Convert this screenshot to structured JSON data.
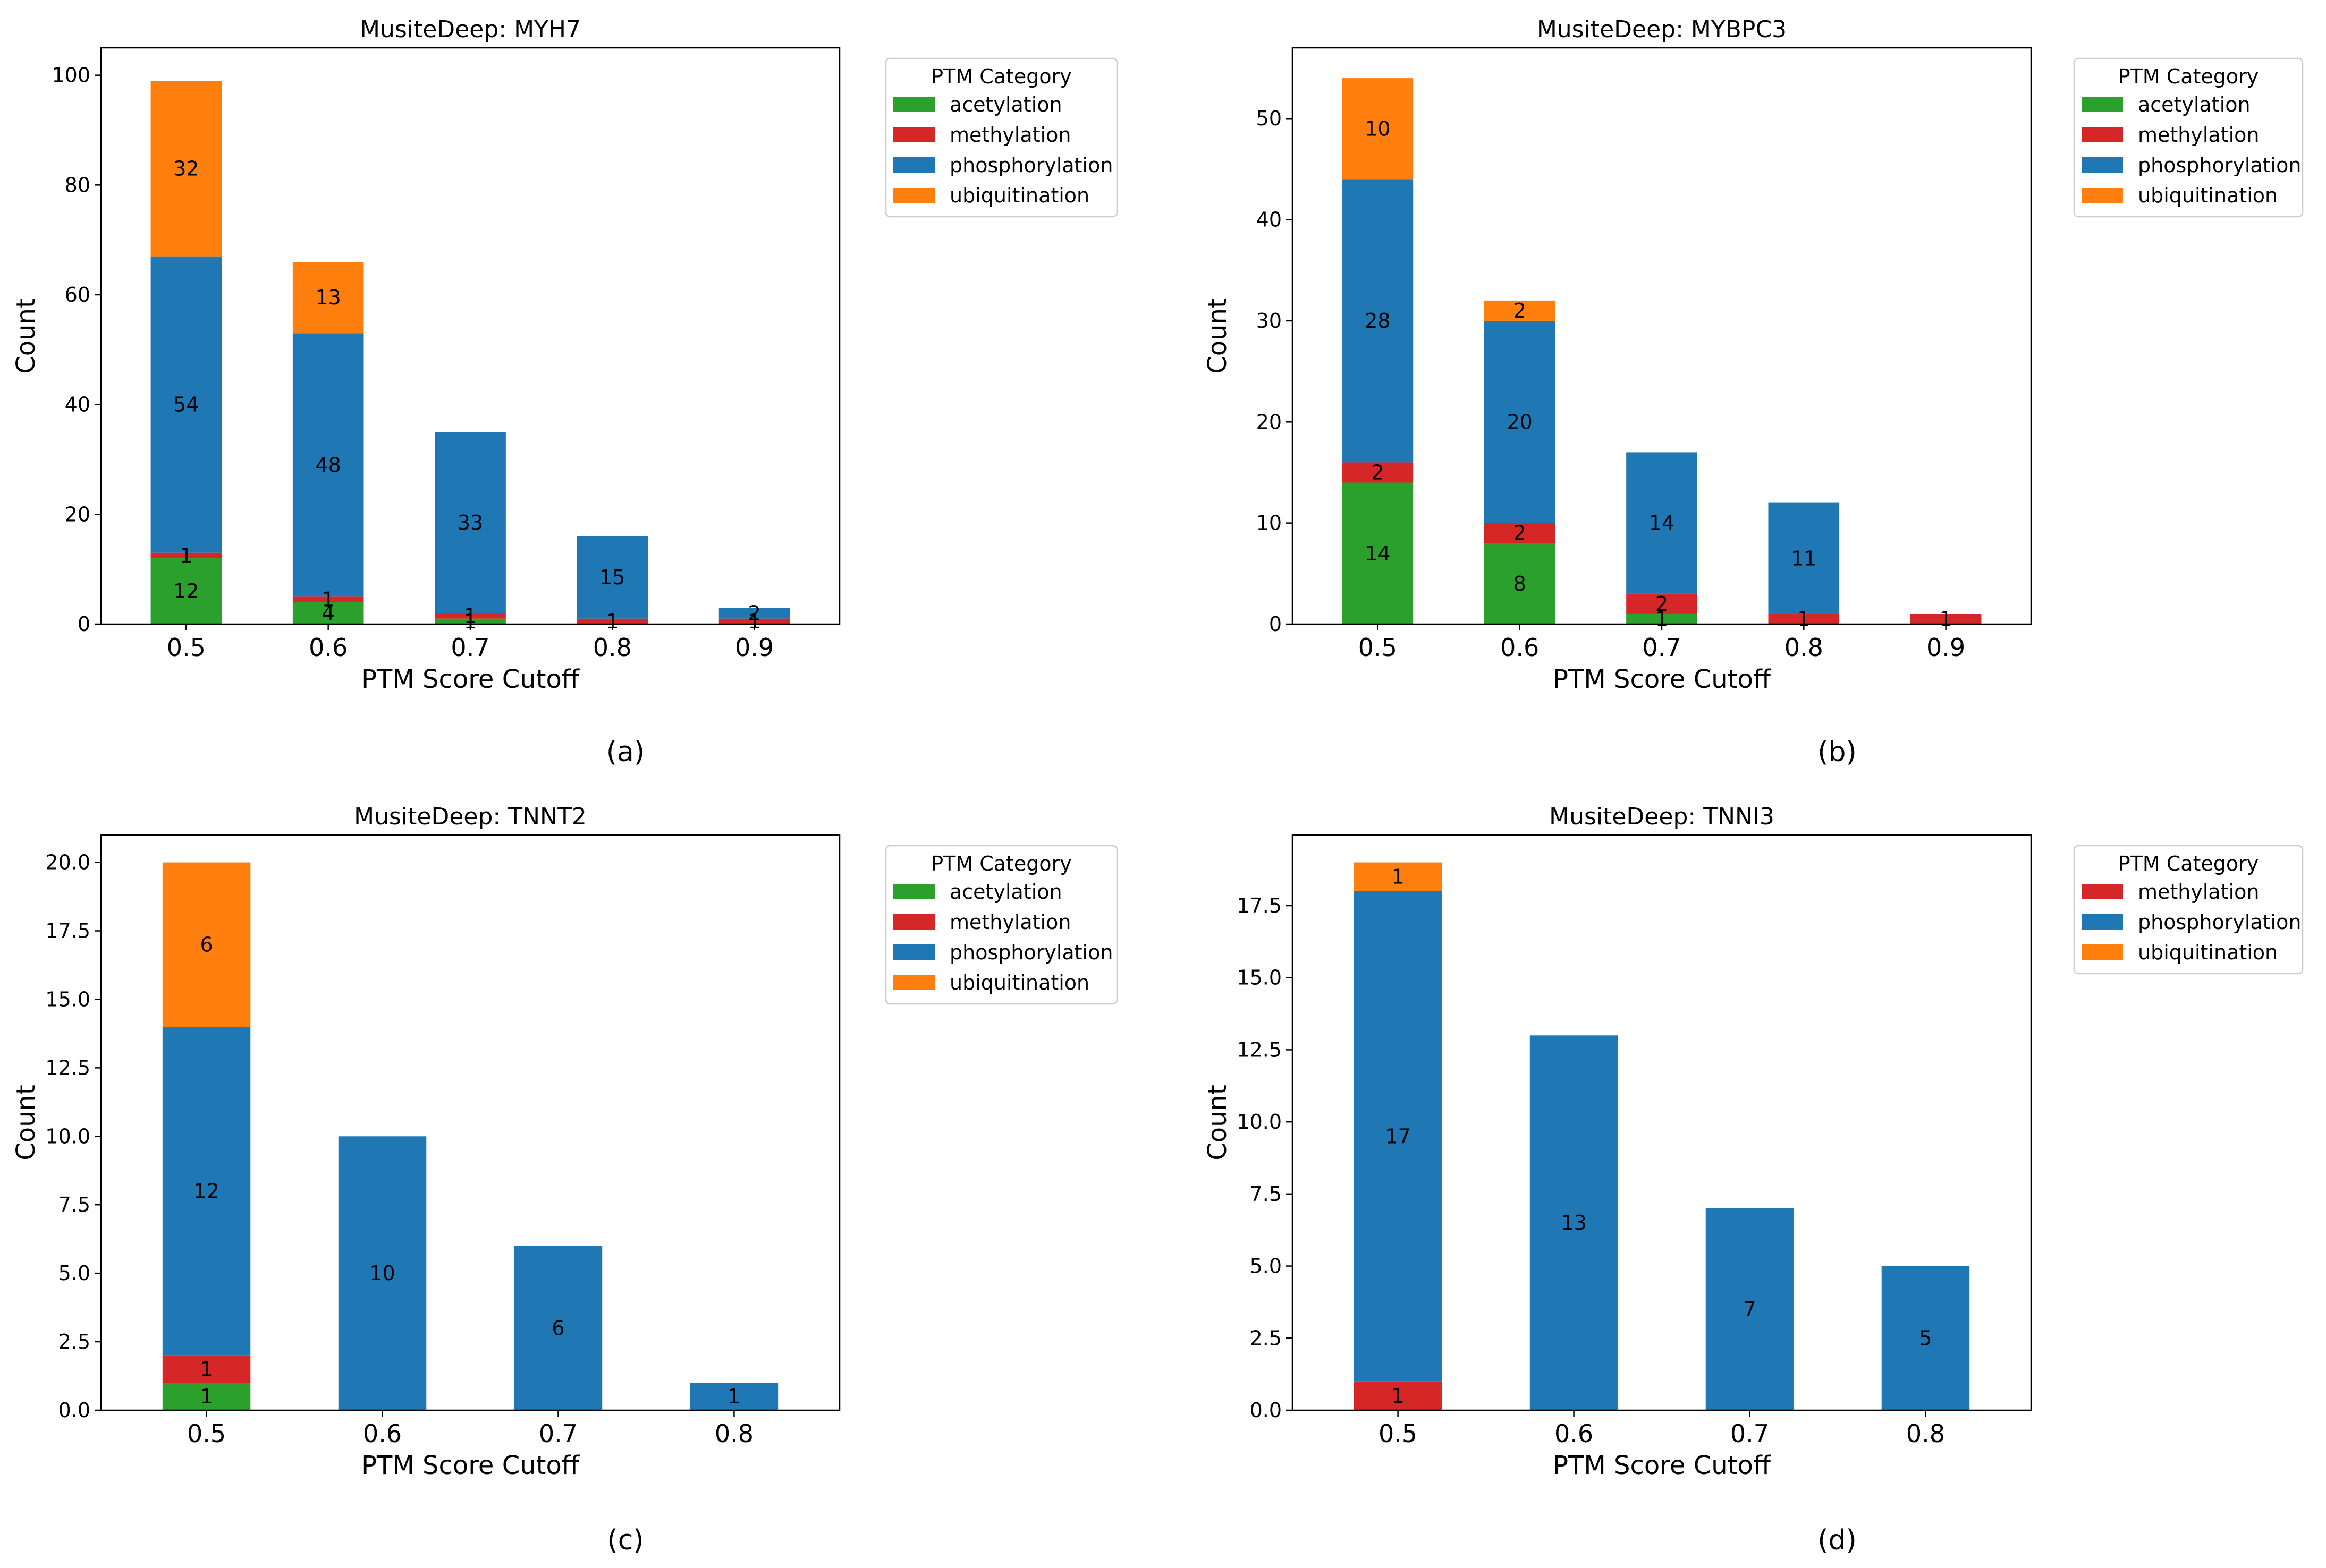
{
  "colors": {
    "acetylation": "#2ca02c",
    "methylation": "#d62728",
    "phosphorylation": "#1f77b4",
    "ubiquitination": "#ff7f0e"
  },
  "chart_data": [
    {
      "type": "bar",
      "stacked": true,
      "panel_label": "(a)",
      "title": "MusiteDeep: MYH7",
      "xlabel": "PTM Score Cutoff",
      "ylabel": "Count",
      "categories": [
        "0.5",
        "0.6",
        "0.7",
        "0.8",
        "0.9"
      ],
      "ylim": [
        0,
        105
      ],
      "yticks": [
        0,
        20,
        40,
        60,
        80,
        100
      ],
      "ytick_labels": [
        "0",
        "20",
        "40",
        "60",
        "80",
        "100"
      ],
      "legend_title": "PTM Category",
      "legend_position": "outside-top-right",
      "series": [
        {
          "name": "acetylation",
          "values": [
            12,
            4,
            1,
            0,
            0
          ]
        },
        {
          "name": "methylation",
          "values": [
            1,
            1,
            1,
            1,
            1
          ]
        },
        {
          "name": "phosphorylation",
          "values": [
            54,
            48,
            33,
            15,
            2
          ]
        },
        {
          "name": "ubiquitination",
          "values": [
            32,
            13,
            0,
            0,
            0
          ]
        }
      ]
    },
    {
      "type": "bar",
      "stacked": true,
      "panel_label": "(b)",
      "title": "MusiteDeep: MYBPC3",
      "xlabel": "PTM Score Cutoff",
      "ylabel": "Count",
      "categories": [
        "0.5",
        "0.6",
        "0.7",
        "0.8",
        "0.9"
      ],
      "ylim": [
        0,
        57
      ],
      "yticks": [
        0,
        10,
        20,
        30,
        40,
        50
      ],
      "ytick_labels": [
        "0",
        "10",
        "20",
        "30",
        "40",
        "50"
      ],
      "legend_title": "PTM Category",
      "legend_position": "outside-top-right",
      "series": [
        {
          "name": "acetylation",
          "values": [
            14,
            8,
            1,
            0,
            0
          ]
        },
        {
          "name": "methylation",
          "values": [
            2,
            2,
            2,
            1,
            1
          ]
        },
        {
          "name": "phosphorylation",
          "values": [
            28,
            20,
            14,
            11,
            0
          ]
        },
        {
          "name": "ubiquitination",
          "values": [
            10,
            2,
            0,
            0,
            0
          ]
        }
      ]
    },
    {
      "type": "bar",
      "stacked": true,
      "panel_label": "(c)",
      "title": "MusiteDeep: TNNT2",
      "xlabel": "PTM Score Cutoff",
      "ylabel": "Count",
      "categories": [
        "0.5",
        "0.6",
        "0.7",
        "0.8"
      ],
      "ylim": [
        0,
        21
      ],
      "yticks": [
        0,
        2.5,
        5,
        7.5,
        10,
        12.5,
        15,
        17.5,
        20
      ],
      "ytick_labels": [
        "0.0",
        "2.5",
        "5.0",
        "7.5",
        "10.0",
        "12.5",
        "15.0",
        "17.5",
        "20.0"
      ],
      "legend_title": "PTM Category",
      "legend_position": "outside-top-right",
      "series": [
        {
          "name": "acetylation",
          "values": [
            1,
            0,
            0,
            0
          ]
        },
        {
          "name": "methylation",
          "values": [
            1,
            0,
            0,
            0
          ]
        },
        {
          "name": "phosphorylation",
          "values": [
            12,
            10,
            6,
            1
          ]
        },
        {
          "name": "ubiquitination",
          "values": [
            6,
            0,
            0,
            0
          ]
        }
      ]
    },
    {
      "type": "bar",
      "stacked": true,
      "panel_label": "(d)",
      "title": "MusiteDeep: TNNI3",
      "xlabel": "PTM Score Cutoff",
      "ylabel": "Count",
      "categories": [
        "0.5",
        "0.6",
        "0.7",
        "0.8"
      ],
      "ylim": [
        0,
        19.95
      ],
      "yticks": [
        0,
        2.5,
        5,
        7.5,
        10,
        12.5,
        15,
        17.5
      ],
      "ytick_labels": [
        "0.0",
        "2.5",
        "5.0",
        "7.5",
        "10.0",
        "12.5",
        "15.0",
        "17.5"
      ],
      "legend_title": "PTM Category",
      "legend_position": "outside-top-right",
      "series": [
        {
          "name": "methylation",
          "values": [
            1,
            0,
            0,
            0
          ]
        },
        {
          "name": "phosphorylation",
          "values": [
            17,
            13,
            7,
            5
          ]
        },
        {
          "name": "ubiquitination",
          "values": [
            1,
            0,
            0,
            0
          ]
        }
      ]
    }
  ]
}
